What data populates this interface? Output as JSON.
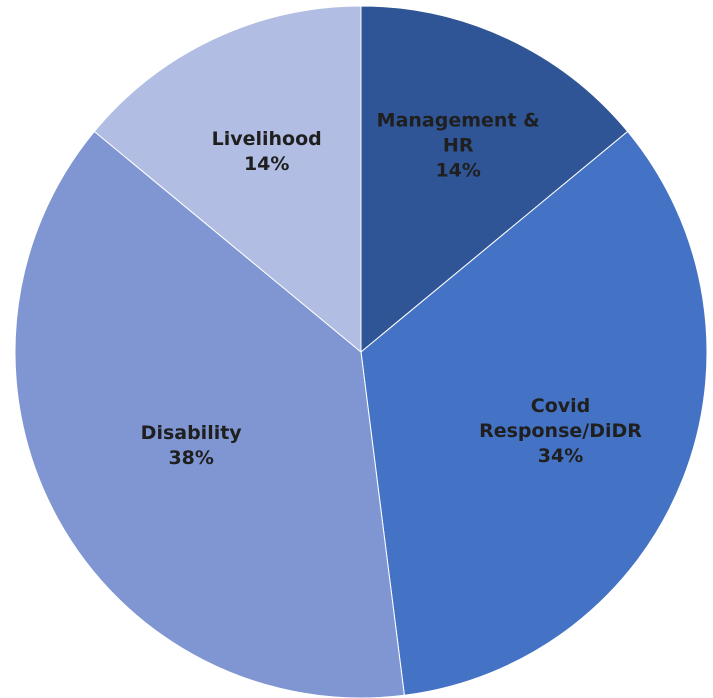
{
  "chart_data": {
    "type": "pie",
    "title": "",
    "slices": [
      {
        "label_lines": [
          "Management  &",
          "HR"
        ],
        "value": 14,
        "value_label": "14%",
        "color": "#2f5597"
      },
      {
        "label_lines": [
          "Covid",
          "Response/DiDR"
        ],
        "value": 34,
        "value_label": "34%",
        "color": "#4472c4"
      },
      {
        "label_lines": [
          "Disability"
        ],
        "value": 38,
        "value_label": "38%",
        "color": "#7f96d2"
      },
      {
        "label_lines": [
          "Livelihood"
        ],
        "value": 14,
        "value_label": "14%",
        "color": "#b1bde2"
      }
    ]
  }
}
